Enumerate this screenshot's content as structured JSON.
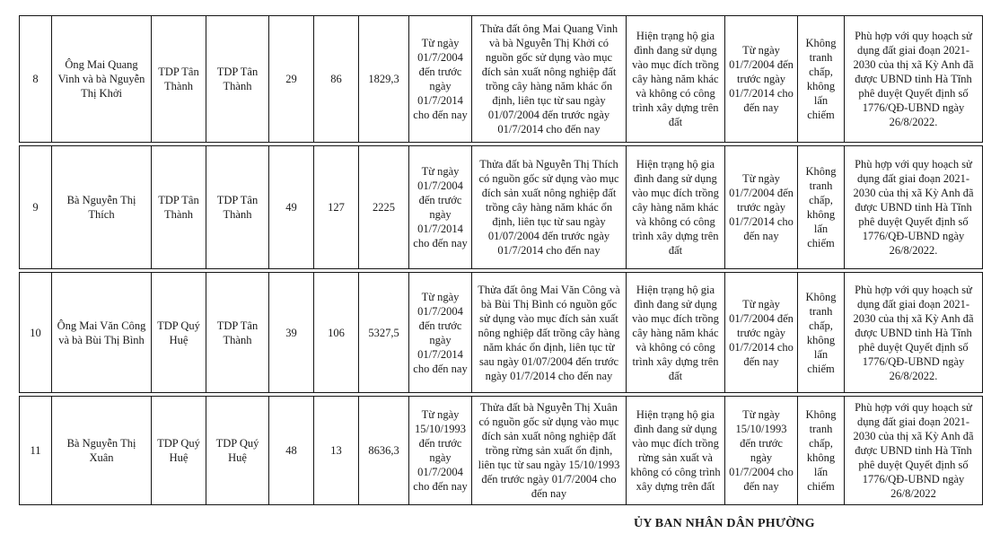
{
  "table": {
    "rows": [
      {
        "cells": [
          "8",
          "Ông Mai Quang Vinh và bà Nguyễn Thị Khởi",
          "TDP Tân Thành",
          "TDP Tân Thành",
          "29",
          "86",
          "1829,3",
          "Từ ngày 01/7/2004 đến trước ngày 01/7/2014 cho đến nay",
          "Thửa đất ông Mai Quang Vinh và bà Nguyễn Thị Khởi có nguồn gốc sử dụng vào mục đích sản xuất nông nghiệp đất trồng cây hàng năm khác ổn định, liên tục từ sau ngày 01/07/2004 đến trước ngày 01/7/2014 cho đến nay",
          "Hiện trạng hộ gia đình đang sử dụng vào mục đích trồng cây hàng năm khác và không có công trình xây dựng trên đất",
          "Từ ngày 01/7/2004 đến trước ngày 01/7/2014 cho đến nay",
          "Không tranh chấp, không lấn chiếm",
          "Phù hợp với quy hoạch sử dụng đất giai đoạn 2021-2030 của thị xã Kỳ Anh đã được UBND tỉnh Hà Tĩnh phê duyệt Quyết định số 1776/QĐ-UBND ngày 26/8/2022."
        ]
      },
      {
        "cells": [
          "9",
          "Bà Nguyễn Thị Thích",
          "TDP Tân Thành",
          "TDP Tân Thành",
          "49",
          "127",
          "2225",
          "Từ ngày 01/7/2004 đến trước ngày 01/7/2014 cho đến nay",
          "Thửa đất bà Nguyễn Thị Thích có nguồn gốc sử dụng vào mục đích sản xuất nông nghiệp đất trồng cây hàng năm khác ổn định, liên tục từ sau ngày 01/07/2004 đến trước ngày 01/7/2014 cho đến nay",
          "Hiện trạng hộ gia đình đang sử dụng vào mục đích trồng cây hàng năm khác và không có công trình xây dựng trên đất",
          "Từ ngày 01/7/2004 đến trước ngày 01/7/2014 cho đến nay",
          "Không tranh chấp, không lấn chiếm",
          "Phù hợp với quy hoạch sử dụng đất giai đoạn 2021-2030 của thị xã Kỳ Anh đã được UBND tỉnh Hà Tĩnh phê duyệt Quyết định số 1776/QĐ-UBND ngày 26/8/2022."
        ]
      },
      {
        "cells": [
          "10",
          "Ông Mai Văn Công và bà Bùi Thị Bình",
          "TDP Quý Huệ",
          "TDP Tân Thành",
          "39",
          "106",
          "5327,5",
          "Từ ngày 01/7/2004 đến trước ngày 01/7/2014 cho đến nay",
          "Thửa đất ông Mai Văn Công và bà Bùi Thị Bình có nguồn gốc sử dụng vào mục đích sản xuất nông nghiệp đất trồng cây hàng năm khác ổn định, liên tục từ sau ngày 01/07/2004 đến trước ngày 01/7/2014 cho đến nay",
          "Hiện trạng hộ gia đình đang sử dụng vào mục đích trồng cây hàng năm khác và không có công trình xây dựng trên đất",
          "Từ ngày 01/7/2004 đến trước ngày 01/7/2014 cho đến nay",
          "Không tranh chấp, không lấn chiếm",
          "Phù hợp với quy hoạch sử dụng đất giai đoạn 2021-2030 của thị xã Kỳ Anh đã được UBND tỉnh Hà Tĩnh phê duyệt Quyết định số 1776/QĐ-UBND ngày 26/8/2022."
        ]
      },
      {
        "cells": [
          "11",
          "Bà Nguyễn Thị Xuân",
          "TDP Quý Huệ",
          "TDP Quý Huệ",
          "48",
          "13",
          "8636,3",
          "Từ ngày 15/10/1993 đến trước ngày 01/7/2004 cho đến nay",
          "Thửa đất bà Nguyễn Thị Xuân có nguồn gốc sử dụng vào mục đích sản xuất nông nghiệp đất trồng rừng sản xuất ổn định, liên tục từ sau ngày 15/10/1993 đến trước ngày 01/7/2004 cho đến nay",
          "Hiện trạng hộ gia đình đang sử dụng vào mục đích trồng rừng sản xuất và không có công trình xây dựng trên đất",
          "Từ ngày 15/10/1993 đến trước ngày 01/7/2004 cho đến nay",
          "Không tranh chấp, không lấn chiếm",
          "Phù hợp với quy hoạch sử dụng đất giai đoạn 2021-2030 của thị xã Kỳ Anh đã được UBND tỉnh Hà Tĩnh phê duyệt Quyết định số 1776/QĐ-UBND ngày 26/8/2022"
        ]
      }
    ]
  },
  "footer": {
    "title": "ỦY BAN NHÂN DÂN PHƯỜNG"
  }
}
